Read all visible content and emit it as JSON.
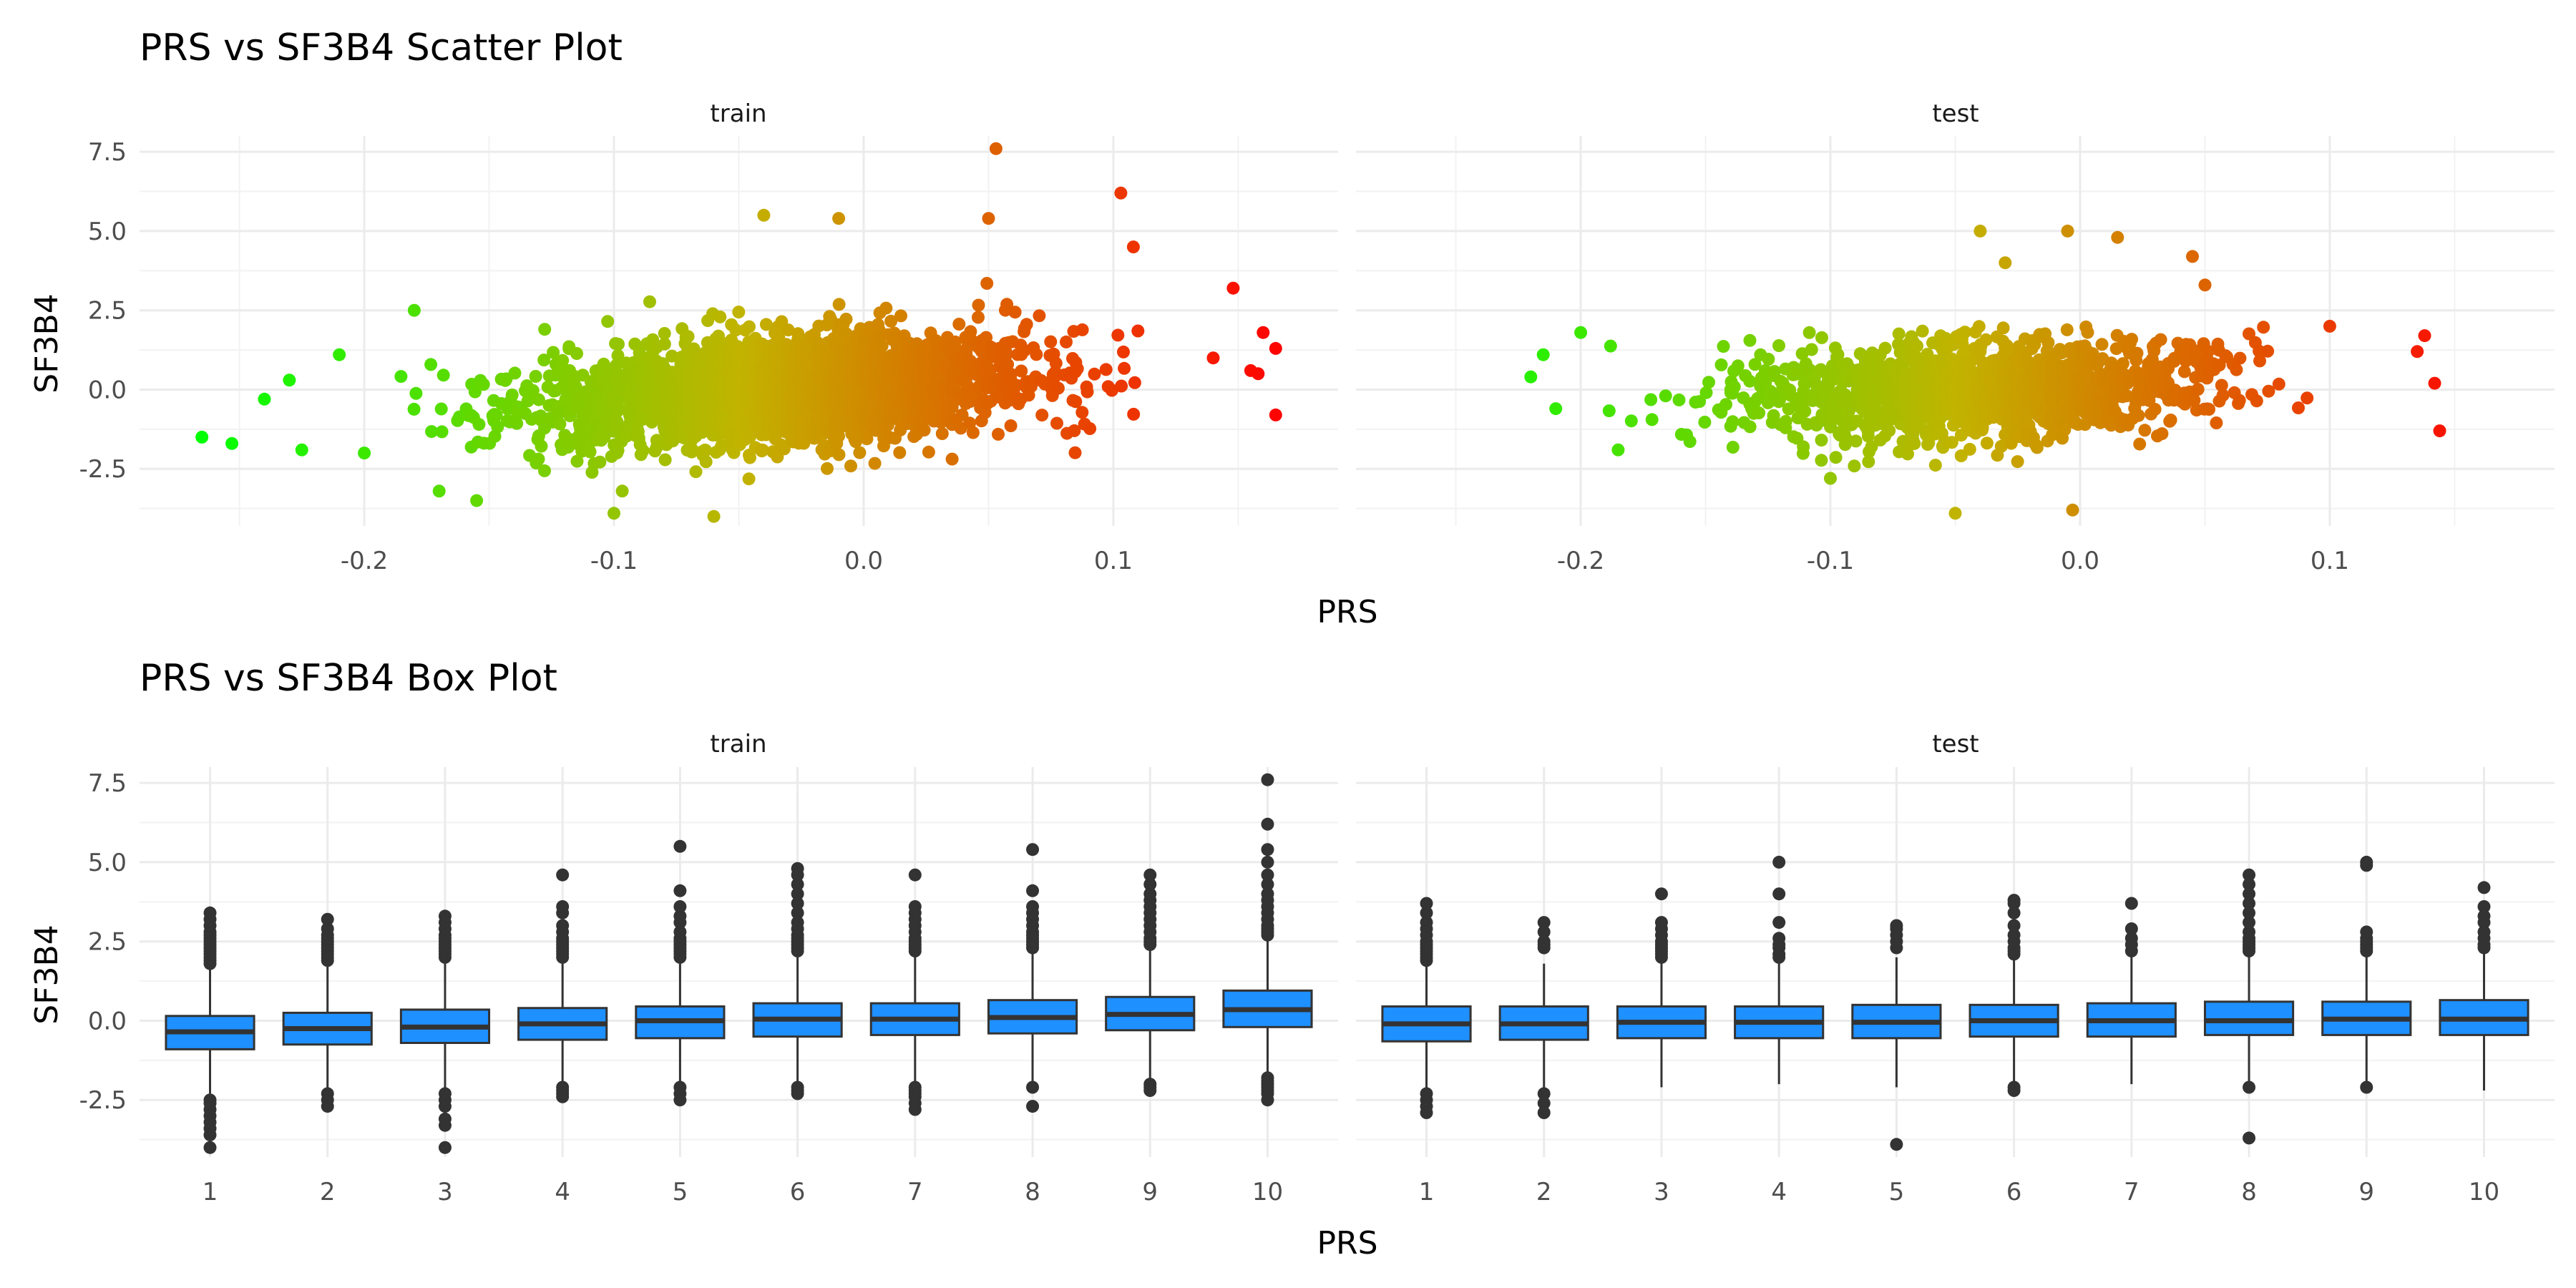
{
  "chart_data": [
    {
      "type": "scatter",
      "title": "PRS vs SF3B4 Scatter Plot",
      "xlabel": "PRS",
      "ylabel": "SF3B4",
      "facets": [
        "train",
        "test"
      ],
      "xlim": [
        -0.29,
        0.19
      ],
      "ylim": [
        -4.3,
        8.0
      ],
      "x_ticks": [
        -0.2,
        -0.1,
        0.0,
        0.1
      ],
      "x_tick_labels": [
        "-0.2",
        "-0.1",
        "0.0",
        "0.1"
      ],
      "y_ticks": [
        -2.5,
        0.0,
        2.5,
        5.0,
        7.5
      ],
      "y_tick_labels": [
        "-2.5",
        "0.0",
        "2.5",
        "5.0",
        "7.5"
      ],
      "color_gradient": {
        "low": "#00ff00",
        "mid": "#c2b300",
        "high": "#ff0000"
      },
      "grid": true,
      "legend": "none",
      "series": [
        {
          "facet": "train",
          "dense_cloud": {
            "x_center": -0.03,
            "x_sd": 0.048,
            "x_min": -0.2,
            "x_max": 0.115,
            "slope": 5.5,
            "y_sd": 0.85,
            "n": 2600
          },
          "points": [
            [
              -0.265,
              -1.5
            ],
            [
              -0.253,
              -1.7
            ],
            [
              -0.24,
              -0.3
            ],
            [
              -0.23,
              0.3
            ],
            [
              -0.225,
              -1.9
            ],
            [
              -0.21,
              1.1
            ],
            [
              -0.2,
              -2.0
            ],
            [
              -0.18,
              2.5
            ],
            [
              -0.17,
              -3.2
            ],
            [
              -0.155,
              -3.5
            ],
            [
              -0.1,
              -3.9
            ],
            [
              -0.06,
              -4.0
            ],
            [
              -0.04,
              5.5
            ],
            [
              -0.01,
              5.4
            ],
            [
              0.05,
              5.4
            ],
            [
              0.053,
              7.6
            ],
            [
              0.103,
              6.2
            ],
            [
              0.108,
              4.5
            ],
            [
              0.148,
              3.2
            ],
            [
              0.16,
              1.8
            ],
            [
              0.165,
              1.3
            ],
            [
              0.155,
              0.6
            ],
            [
              0.158,
              0.5
            ],
            [
              0.165,
              -0.8
            ],
            [
              0.14,
              1.0
            ]
          ]
        },
        {
          "facet": "test",
          "dense_cloud": {
            "x_center": -0.04,
            "x_sd": 0.045,
            "x_min": -0.19,
            "x_max": 0.11,
            "slope": 2.5,
            "y_sd": 0.75,
            "n": 1500
          },
          "points": [
            [
              -0.22,
              0.4
            ],
            [
              -0.215,
              1.1
            ],
            [
              -0.21,
              -0.6
            ],
            [
              -0.2,
              1.8
            ],
            [
              -0.185,
              -1.9
            ],
            [
              -0.1,
              -2.8
            ],
            [
              -0.05,
              -3.9
            ],
            [
              -0.03,
              4.0
            ],
            [
              -0.04,
              5.0
            ],
            [
              -0.005,
              5.0
            ],
            [
              0.015,
              4.8
            ],
            [
              0.045,
              4.2
            ],
            [
              0.05,
              3.3
            ],
            [
              0.1,
              2.0
            ],
            [
              0.135,
              1.2
            ],
            [
              0.138,
              1.7
            ],
            [
              0.142,
              0.2
            ],
            [
              0.144,
              -1.3
            ],
            [
              -0.003,
              -3.8
            ]
          ]
        }
      ]
    },
    {
      "type": "box",
      "title": "PRS vs SF3B4 Box Plot",
      "xlabel": "PRS",
      "ylabel": "SF3B4",
      "facets": [
        "train",
        "test"
      ],
      "categories": [
        "1",
        "2",
        "3",
        "4",
        "5",
        "6",
        "7",
        "8",
        "9",
        "10"
      ],
      "ylim": [
        -4.3,
        8.0
      ],
      "y_ticks": [
        -2.5,
        0.0,
        2.5,
        5.0,
        7.5
      ],
      "y_tick_labels": [
        "-2.5",
        "0.0",
        "2.5",
        "5.0",
        "7.5"
      ],
      "box_fill": "#1e90ff",
      "grid": true,
      "series": [
        {
          "facet": "train",
          "boxes": [
            {
              "q1": -0.9,
              "median": -0.35,
              "q3": 0.15,
              "lo": -2.3,
              "hi": 1.7,
              "out_hi": [
                1.8,
                1.9,
                2.0,
                2.1,
                2.2,
                2.3,
                2.4,
                2.5,
                2.6,
                2.7,
                2.8,
                3.0,
                3.2,
                3.4
              ],
              "out_lo": [
                -2.5,
                -2.6,
                -2.8,
                -3.0,
                -3.2,
                -3.4,
                -3.6,
                -4.0
              ]
            },
            {
              "q1": -0.75,
              "median": -0.25,
              "q3": 0.25,
              "lo": -2.2,
              "hi": 1.8,
              "out_hi": [
                1.9,
                2.0,
                2.1,
                2.2,
                2.3,
                2.4,
                2.5,
                2.6,
                2.7,
                2.9,
                3.2
              ],
              "out_lo": [
                -2.3,
                -2.5,
                -2.7
              ]
            },
            {
              "q1": -0.7,
              "median": -0.2,
              "q3": 0.35,
              "lo": -2.1,
              "hi": 1.9,
              "out_hi": [
                2.0,
                2.1,
                2.2,
                2.3,
                2.4,
                2.5,
                2.6,
                2.7,
                2.9,
                3.1,
                3.3
              ],
              "out_lo": [
                -2.3,
                -2.5,
                -2.7,
                -3.1,
                -3.3,
                -4.0
              ]
            },
            {
              "q1": -0.6,
              "median": -0.1,
              "q3": 0.4,
              "lo": -2.0,
              "hi": 1.9,
              "out_hi": [
                2.0,
                2.1,
                2.2,
                2.3,
                2.4,
                2.5,
                2.6,
                2.8,
                3.0,
                3.4,
                3.6,
                4.6
              ],
              "out_lo": [
                -2.1,
                -2.2,
                -2.3,
                -2.4
              ]
            },
            {
              "q1": -0.55,
              "median": 0.0,
              "q3": 0.45,
              "lo": -2.0,
              "hi": 1.9,
              "out_hi": [
                2.0,
                2.1,
                2.2,
                2.3,
                2.4,
                2.5,
                2.6,
                2.8,
                3.1,
                3.3,
                3.6,
                4.1,
                5.5
              ],
              "out_lo": [
                -2.1,
                -2.3,
                -2.5
              ]
            },
            {
              "q1": -0.5,
              "median": 0.05,
              "q3": 0.55,
              "lo": -2.0,
              "hi": 2.1,
              "out_hi": [
                2.2,
                2.3,
                2.4,
                2.5,
                2.6,
                2.7,
                2.9,
                3.1,
                3.4,
                3.7,
                4.0,
                4.3,
                4.6,
                4.8
              ],
              "out_lo": [
                -2.1,
                -2.2,
                -2.3
              ]
            },
            {
              "q1": -0.45,
              "median": 0.05,
              "q3": 0.55,
              "lo": -2.0,
              "hi": 2.1,
              "out_hi": [
                2.2,
                2.3,
                2.4,
                2.5,
                2.6,
                2.8,
                3.0,
                3.2,
                3.4,
                3.6,
                4.6
              ],
              "out_lo": [
                -2.1,
                -2.2,
                -2.3,
                -2.4,
                -2.6,
                -2.8
              ]
            },
            {
              "q1": -0.4,
              "median": 0.1,
              "q3": 0.65,
              "lo": -1.9,
              "hi": 2.2,
              "out_hi": [
                2.3,
                2.4,
                2.5,
                2.6,
                2.7,
                2.8,
                3.0,
                3.2,
                3.4,
                3.6,
                4.1,
                5.4
              ],
              "out_lo": [
                -2.1,
                -2.7
              ]
            },
            {
              "q1": -0.3,
              "median": 0.2,
              "q3": 0.75,
              "lo": -1.9,
              "hi": 2.3,
              "out_hi": [
                2.4,
                2.5,
                2.6,
                2.8,
                3.0,
                3.2,
                3.4,
                3.6,
                3.8,
                4.0,
                4.3,
                4.6
              ],
              "out_lo": [
                -2.0,
                -2.1,
                -2.2
              ]
            },
            {
              "q1": -0.2,
              "median": 0.35,
              "q3": 0.95,
              "lo": -1.7,
              "hi": 2.6,
              "out_hi": [
                2.7,
                2.8,
                2.9,
                3.0,
                3.2,
                3.4,
                3.6,
                3.8,
                4.0,
                4.3,
                4.6,
                5.0,
                5.4,
                6.2,
                7.6
              ],
              "out_lo": [
                -1.8,
                -1.9,
                -2.0,
                -2.1,
                -2.2,
                -2.3,
                -2.5
              ]
            }
          ]
        },
        {
          "facet": "test",
          "boxes": [
            {
              "q1": -0.65,
              "median": -0.1,
              "q3": 0.45,
              "lo": -2.2,
              "hi": 1.8,
              "out_hi": [
                1.9,
                2.0,
                2.1,
                2.2,
                2.3,
                2.4,
                2.5,
                2.7,
                2.9,
                3.1,
                3.4,
                3.7
              ],
              "out_lo": [
                -2.3,
                -2.5,
                -2.7,
                -2.9
              ]
            },
            {
              "q1": -0.6,
              "median": -0.1,
              "q3": 0.45,
              "lo": -2.1,
              "hi": 1.8,
              "out_hi": [
                2.3,
                2.4,
                2.5,
                2.8,
                3.1
              ],
              "out_lo": [
                -2.3,
                -2.6,
                -2.9
              ]
            },
            {
              "q1": -0.55,
              "median": -0.05,
              "q3": 0.45,
              "lo": -2.1,
              "hi": 1.9,
              "out_hi": [
                2.0,
                2.1,
                2.2,
                2.3,
                2.4,
                2.5,
                2.7,
                2.9,
                3.1,
                4.0
              ],
              "out_lo": []
            },
            {
              "q1": -0.55,
              "median": -0.05,
              "q3": 0.45,
              "lo": -2.0,
              "hi": 1.9,
              "out_hi": [
                2.0,
                2.1,
                2.3,
                2.4,
                2.6,
                3.1,
                4.0,
                5.0
              ],
              "out_lo": []
            },
            {
              "q1": -0.55,
              "median": -0.05,
              "q3": 0.5,
              "lo": -2.1,
              "hi": 2.0,
              "out_hi": [
                2.3,
                2.5,
                2.7,
                2.9,
                3.0
              ],
              "out_lo": [
                -3.9
              ]
            },
            {
              "q1": -0.5,
              "median": 0.0,
              "q3": 0.5,
              "lo": -2.0,
              "hi": 2.0,
              "out_hi": [
                2.1,
                2.2,
                2.3,
                2.5,
                2.7,
                3.0,
                3.4,
                3.7,
                3.8
              ],
              "out_lo": [
                -2.1,
                -2.2
              ]
            },
            {
              "q1": -0.5,
              "median": 0.0,
              "q3": 0.55,
              "lo": -2.0,
              "hi": 2.1,
              "out_hi": [
                2.2,
                2.4,
                2.6,
                2.9,
                3.7
              ],
              "out_lo": []
            },
            {
              "q1": -0.45,
              "median": 0.0,
              "q3": 0.6,
              "lo": -2.0,
              "hi": 2.1,
              "out_hi": [
                2.2,
                2.3,
                2.4,
                2.5,
                2.6,
                2.8,
                3.1,
                3.4,
                3.7,
                4.0,
                4.3,
                4.6
              ],
              "out_lo": [
                -2.1,
                -3.7
              ]
            },
            {
              "q1": -0.45,
              "median": 0.05,
              "q3": 0.6,
              "lo": -2.0,
              "hi": 2.1,
              "out_hi": [
                2.2,
                2.3,
                2.4,
                2.5,
                2.6,
                2.8,
                4.9,
                5.0
              ],
              "out_lo": [
                -2.1
              ]
            },
            {
              "q1": -0.45,
              "median": 0.05,
              "q3": 0.65,
              "lo": -2.2,
              "hi": 2.2,
              "out_hi": [
                2.3,
                2.4,
                2.6,
                2.8,
                3.1,
                3.3,
                3.6,
                4.2
              ],
              "out_lo": []
            }
          ]
        }
      ]
    }
  ]
}
